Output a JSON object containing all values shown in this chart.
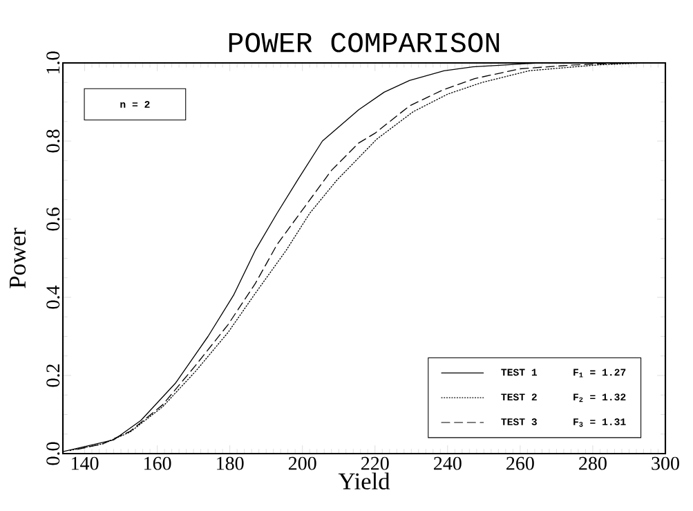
{
  "chart_data": {
    "type": "line",
    "title": "POWER COMPARISON",
    "xlabel": "Yield",
    "ylabel": "Power",
    "annotations": [
      "n = 2",
      "F$_{1}$ = 1.27",
      "F$_{2}$ = 1.32",
      "F$_{3}$ = 1.31"
    ],
    "xlim": [
      134,
      300
    ],
    "xticks": [
      140,
      160,
      180,
      200,
      220,
      240,
      260,
      280,
      300
    ],
    "ylim": [
      0,
      1
    ],
    "yticks": [
      {
        "value": 0,
        "label": "0.0"
      },
      {
        "value": 0.2,
        "label": "0.2"
      },
      {
        "value": 0.4,
        "label": "0.4"
      },
      {
        "value": 0.6,
        "label": "0.6"
      },
      {
        "value": 0.8,
        "label": "0.8"
      },
      {
        "value": 1,
        "label": "1.0"
      }
    ],
    "legend": "bottom right",
    "grid": false,
    "marker": "none",
    "series": [
      {
        "name": "TEST 1",
        "color": "#000000",
        "line_style": "solid",
        "x": [
          134,
          148,
          155.5,
          165,
          174,
          181,
          187,
          193,
          199,
          205.5,
          215.5,
          222.5,
          229.5,
          239,
          247,
          256,
          265,
          280,
          300
        ],
        "values": [
          0.005,
          0.035,
          0.085,
          0.18,
          0.3,
          0.405,
          0.52,
          0.615,
          0.705,
          0.8,
          0.88,
          0.925,
          0.955,
          0.98,
          0.99,
          0.995,
          1,
          1,
          1
        ]
      },
      {
        "name": "TEST 2",
        "color": "#000000",
        "line_style": "dotted",
        "x": [
          136,
          145,
          152.5,
          161.5,
          170.5,
          179.5,
          187,
          195.5,
          202,
          209.5,
          220.5,
          230.5,
          240,
          249.5,
          262.5,
          275,
          281.5,
          295
        ],
        "values": [
          0.008,
          0.025,
          0.055,
          0.12,
          0.21,
          0.31,
          0.41,
          0.52,
          0.615,
          0.7,
          0.805,
          0.875,
          0.92,
          0.95,
          0.98,
          0.99,
          0.995,
          1
        ]
      },
      {
        "name": "TEST 3",
        "color": "#000000",
        "line_style": "dashed",
        "x": [
          138,
          145,
          152.5,
          161.5,
          170.5,
          179.5,
          187,
          193,
          200.5,
          208,
          215.5,
          220,
          229.5,
          238.5,
          247.5,
          260,
          275,
          290
        ],
        "values": [
          0.011,
          0.025,
          0.057,
          0.125,
          0.225,
          0.33,
          0.435,
          0.535,
          0.63,
          0.725,
          0.795,
          0.82,
          0.89,
          0.93,
          0.96,
          0.985,
          0.995,
          1
        ]
      }
    ]
  }
}
